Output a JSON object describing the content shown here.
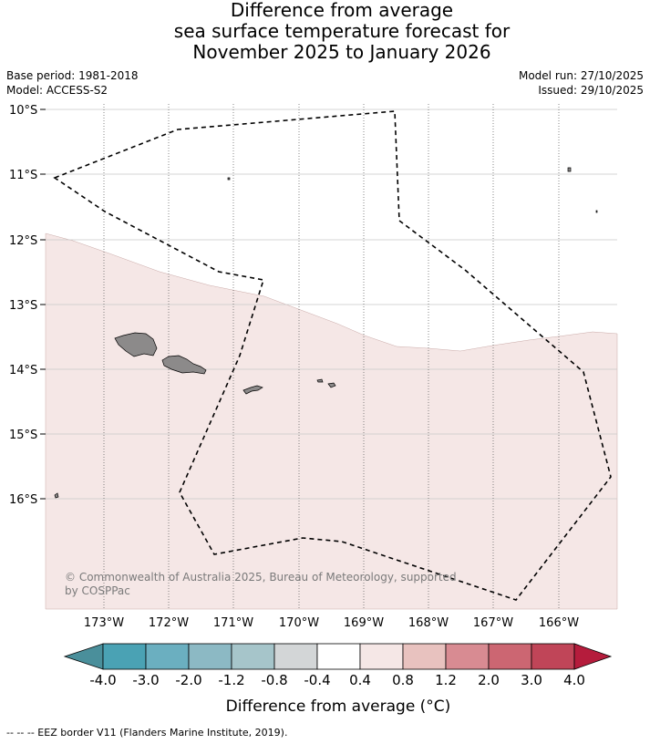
{
  "title_lines": [
    "Difference from average",
    "sea surface temperature forecast for",
    "November 2025 to January 2026"
  ],
  "info": {
    "base_period": "Base period: 1981-2018",
    "model": "Model: ACCESS-S2",
    "model_run": "Model run: 27/10/2025",
    "issued": "Issued: 29/10/2025"
  },
  "map": {
    "lat_labels": [
      "10°S",
      "11°S",
      "12°S",
      "13°S",
      "14°S",
      "15°S",
      "16°S"
    ],
    "lon_labels": [
      "173°W",
      "172°W",
      "171°W",
      "170°W",
      "169°W",
      "168°W",
      "167°W",
      "166°W"
    ],
    "anomaly_region_fill": "#f5e7e6",
    "land_color": "#8c8a8a",
    "copyright_lines": [
      "© Commonwealth of Australia 2025, Bureau of Meteorology, supported",
      "by COSPPac"
    ]
  },
  "colorbar": {
    "title": "Difference from average (°C)",
    "labels": [
      "-4.0",
      "-3.0",
      "-2.0",
      "-1.2",
      "-0.8",
      "-0.4",
      "0.4",
      "0.8",
      "1.2",
      "2.0",
      "3.0",
      "4.0"
    ],
    "colors": [
      "#4a8f9b",
      "#4aa2b4",
      "#6bafc0",
      "#8cb9c4",
      "#a6c5ca",
      "#d3d6d7",
      "#ffffff",
      "#f5e7e6",
      "#e8c2bf",
      "#d88b92",
      "#cc6672",
      "#c04558",
      "#b51c3c"
    ]
  },
  "footnote": "--  --  -- EEZ border V11 (Flanders Marine Institute, 2019)."
}
